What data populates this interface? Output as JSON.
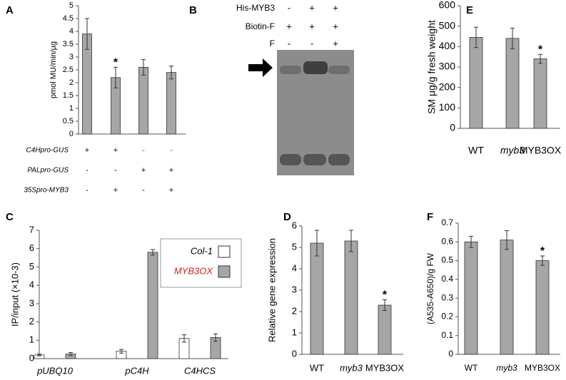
{
  "chart_data": [
    {
      "type": "bar",
      "label": "A",
      "ylabel": "pmol MU/min/µg",
      "categories": [
        null,
        null,
        null,
        null
      ],
      "values": [
        3.9,
        2.2,
        2.6,
        2.4
      ],
      "errors": [
        0.6,
        0.4,
        0.3,
        0.25
      ],
      "annotations": [
        null,
        "*",
        null,
        null
      ],
      "color": "#a6a6a6",
      "ylim": [
        0,
        5
      ],
      "yticks": [
        0,
        0.5,
        1,
        1.5,
        2,
        2.5,
        3,
        3.5,
        4,
        4.5,
        5
      ],
      "conditions": [
        {
          "label": "C4Hpro-GUS",
          "marks": [
            "+",
            "+",
            "-",
            "-"
          ]
        },
        {
          "label": "PALpro-GUS",
          "marks": [
            "-",
            "-",
            "+",
            "+"
          ]
        },
        {
          "label": "35Spro-MYB3",
          "marks": [
            "-",
            "+",
            "-",
            "+"
          ]
        }
      ]
    },
    {
      "type": "grouped-bar",
      "label": "C",
      "ylabel": "IP/input (×10-3)",
      "categories": [
        "pUBQ10",
        "pC4H",
        "C4HCS"
      ],
      "series": [
        {
          "name": "Col-1",
          "color": "#ffffff",
          "values": [
            0.2,
            0.4,
            1.1
          ],
          "errors": [
            0.05,
            0.1,
            0.2
          ]
        },
        {
          "name": "MYB3OX",
          "color": "#a6a6a6",
          "values": [
            0.25,
            5.8,
            1.15
          ],
          "errors": [
            0.08,
            0.15,
            0.2
          ]
        }
      ],
      "ylim": [
        0,
        7
      ],
      "yticks": [
        0,
        1,
        2,
        3,
        4,
        5,
        6,
        7
      ],
      "legend": "top-right"
    },
    {
      "type": "bar",
      "label": "D",
      "ylabel": "Relative gene expression",
      "categories": [
        "WT",
        "myb3",
        "MYB3OX"
      ],
      "values": [
        5.2,
        5.3,
        2.3
      ],
      "errors": [
        0.6,
        0.5,
        0.25
      ],
      "annotations": [
        null,
        null,
        "*"
      ],
      "color": "#a6a6a6",
      "ylim": [
        0,
        6
      ],
      "yticks": [
        0,
        1,
        2,
        3,
        4,
        5,
        6
      ]
    },
    {
      "type": "bar",
      "label": "E",
      "ylabel": "SM µg/g fresh weight",
      "categories": [
        "WT",
        "myb3",
        "MYB3OX"
      ],
      "values": [
        445,
        440,
        340
      ],
      "errors": [
        50,
        50,
        22
      ],
      "annotations": [
        null,
        null,
        "*"
      ],
      "color": "#a6a6a6",
      "ylim": [
        0,
        600
      ],
      "yticks": [
        0,
        100,
        200,
        300,
        400,
        500,
        600
      ]
    },
    {
      "type": "bar",
      "label": "F",
      "ylabel": "(A535-A650)/g FW",
      "categories": [
        "WT",
        "myb3",
        "MYB3OX"
      ],
      "values": [
        0.6,
        0.61,
        0.5
      ],
      "errors": [
        0.03,
        0.05,
        0.025
      ],
      "annotations": [
        null,
        null,
        "*"
      ],
      "color": "#a6a6a6",
      "ylim": [
        0,
        0.7
      ],
      "yticks": [
        0,
        0.1,
        0.2,
        0.3,
        0.4,
        0.5,
        0.6,
        0.7
      ]
    }
  ],
  "gel": {
    "label": "B",
    "rows": [
      {
        "label": "His-MYB3",
        "marks": [
          "-",
          "+",
          "+"
        ]
      },
      {
        "label": "Biotin-F",
        "marks": [
          "+",
          "+",
          "+"
        ]
      },
      {
        "label": "F",
        "marks": [
          "-",
          "-",
          "+"
        ]
      }
    ]
  }
}
